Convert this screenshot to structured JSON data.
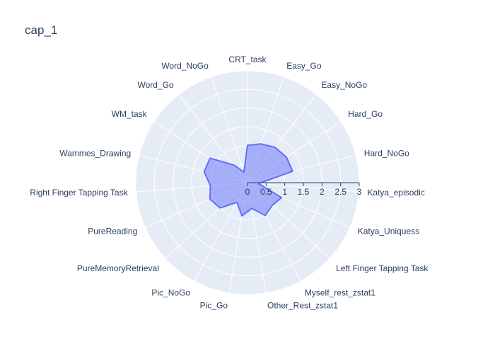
{
  "chart_data": {
    "type": "radar",
    "title": "cap_1",
    "categories": [
      "CRT_task",
      "Easy_Go",
      "Easy_NoGo",
      "Hard_Go",
      "Hard_NoGo",
      "Katya_episodic",
      "Katya_Uniquess",
      "Left Finger Tapping Task",
      "Myself_rest_zstat1",
      "Other_Rest_zstat1",
      "Pic_Go",
      "Pic_NoGo",
      "PureMemoryRetrieval",
      "PureReading",
      "Right Finger Tapping Task",
      "Wammes_Drawing",
      "WM_task",
      "Word_Go",
      "Word_NoGo"
    ],
    "values": [
      1.0,
      1.1,
      1.2,
      1.25,
      1.25,
      0.3,
      1.0,
      0.9,
      1.0,
      0.7,
      0.9,
      0.6,
      1.0,
      1.1,
      1.0,
      1.2,
      1.2,
      0.6,
      0.3
    ],
    "radial_axis": {
      "range": [
        0,
        3
      ],
      "ticks": [
        "0",
        "0.5",
        "1",
        "1.5",
        "2",
        "2.5",
        "3"
      ],
      "tick_values": [
        0,
        0.5,
        1,
        1.5,
        2,
        2.5,
        3
      ]
    },
    "colors": {
      "fill": "#636efa",
      "line": "#636efa",
      "background": "#e5ecf6",
      "grid": "#ffffff",
      "text": "#2a3f5f"
    }
  }
}
